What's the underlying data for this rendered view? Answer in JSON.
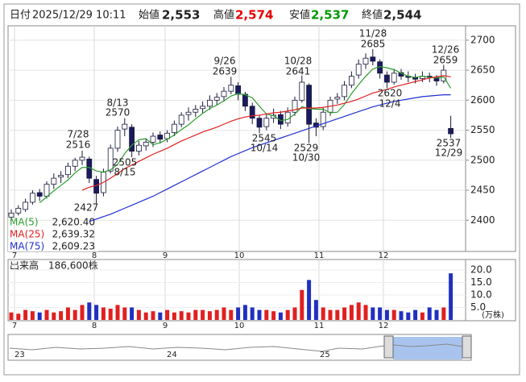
{
  "chart_data": {
    "type": "candlestick",
    "header": [
      {
        "label": "日付",
        "value": "2025/12/29 10:11"
      },
      {
        "label": "始値",
        "value": "2,553"
      },
      {
        "label": "高値",
        "value": "2,574",
        "color": "#e60000"
      },
      {
        "label": "安値",
        "value": "2,537",
        "color": "#009900"
      },
      {
        "label": "終値",
        "value": "2,544"
      }
    ],
    "x_labels": [
      "7",
      "8",
      "9",
      "10",
      "11",
      "12"
    ],
    "ylim": [
      2348,
      2724
    ],
    "yticks": [
      2400,
      2450,
      2500,
      2550,
      2600,
      2650,
      2700
    ],
    "grid": true,
    "up_color": "#ffffff",
    "down_color": "#1a1a5e",
    "candles": [
      [
        2405,
        2418,
        2400,
        2412
      ],
      [
        2412,
        2425,
        2408,
        2420
      ],
      [
        2418,
        2436,
        2414,
        2430
      ],
      [
        2430,
        2450,
        2426,
        2445
      ],
      [
        2446,
        2452,
        2432,
        2440
      ],
      [
        2440,
        2465,
        2436,
        2460
      ],
      [
        2460,
        2478,
        2452,
        2470
      ],
      [
        2472,
        2482,
        2462,
        2475
      ],
      [
        2476,
        2496,
        2470,
        2490
      ],
      [
        2490,
        2504,
        2482,
        2500
      ],
      [
        2500,
        2516,
        2492,
        2505
      ],
      [
        2502,
        2506,
        2462,
        2470
      ],
      [
        2468,
        2474,
        2427,
        2445
      ],
      [
        2446,
        2486,
        2440,
        2480
      ],
      [
        2482,
        2526,
        2478,
        2520
      ],
      [
        2520,
        2556,
        2514,
        2550
      ],
      [
        2552,
        2570,
        2540,
        2560
      ],
      [
        2555,
        2560,
        2505,
        2515
      ],
      [
        2515,
        2532,
        2508,
        2525
      ],
      [
        2524,
        2536,
        2516,
        2530
      ],
      [
        2530,
        2546,
        2522,
        2540
      ],
      [
        2542,
        2548,
        2528,
        2535
      ],
      [
        2536,
        2550,
        2530,
        2545
      ],
      [
        2546,
        2566,
        2540,
        2560
      ],
      [
        2560,
        2580,
        2555,
        2575
      ],
      [
        2576,
        2588,
        2566,
        2580
      ],
      [
        2580,
        2592,
        2572,
        2585
      ],
      [
        2586,
        2598,
        2578,
        2590
      ],
      [
        2590,
        2608,
        2584,
        2600
      ],
      [
        2600,
        2612,
        2592,
        2605
      ],
      [
        2606,
        2622,
        2598,
        2615
      ],
      [
        2615,
        2639,
        2610,
        2625
      ],
      [
        2624,
        2630,
        2600,
        2610
      ],
      [
        2610,
        2614,
        2582,
        2590
      ],
      [
        2590,
        2596,
        2560,
        2570
      ],
      [
        2570,
        2575,
        2545,
        2555
      ],
      [
        2556,
        2578,
        2550,
        2570
      ],
      [
        2570,
        2586,
        2562,
        2575
      ],
      [
        2576,
        2582,
        2552,
        2560
      ],
      [
        2562,
        2588,
        2556,
        2580
      ],
      [
        2580,
        2606,
        2574,
        2600
      ],
      [
        2600,
        2641,
        2596,
        2630
      ],
      [
        2625,
        2628,
        2529,
        2560
      ],
      [
        2562,
        2570,
        2540,
        2555
      ],
      [
        2556,
        2588,
        2550,
        2580
      ],
      [
        2580,
        2606,
        2574,
        2600
      ],
      [
        2602,
        2612,
        2594,
        2605
      ],
      [
        2606,
        2632,
        2600,
        2625
      ],
      [
        2625,
        2648,
        2620,
        2640
      ],
      [
        2642,
        2668,
        2636,
        2660
      ],
      [
        2660,
        2678,
        2652,
        2670
      ],
      [
        2672,
        2685,
        2658,
        2665
      ],
      [
        2664,
        2668,
        2636,
        2645
      ],
      [
        2642,
        2648,
        2620,
        2630
      ],
      [
        2630,
        2652,
        2626,
        2645
      ],
      [
        2646,
        2652,
        2634,
        2640
      ],
      [
        2640,
        2648,
        2630,
        2638
      ],
      [
        2638,
        2644,
        2628,
        2635
      ],
      [
        2636,
        2648,
        2630,
        2640
      ],
      [
        2640,
        2646,
        2630,
        2638
      ],
      [
        2638,
        2642,
        2624,
        2632
      ],
      [
        2632,
        2659,
        2628,
        2650
      ],
      [
        2553,
        2574,
        2537,
        2544
      ]
    ],
    "series": [
      {
        "name": "MA(5)",
        "legend_value": "2,620.40",
        "color": "#2e9e2e",
        "values": [
          null,
          null,
          null,
          null,
          2429,
          2439,
          2449,
          2458,
          2467,
          2479,
          2488,
          2488,
          2482,
          2480,
          2484,
          2493,
          2511,
          2525,
          2534,
          2536,
          2526,
          2529,
          2535,
          2542,
          2551,
          2559,
          2569,
          2578,
          2586,
          2592,
          2599,
          2607,
          2611,
          2609,
          2604,
          2590,
          2577,
          2574,
          2566,
          2568,
          2577,
          2589,
          2586,
          2585,
          2585,
          2579,
          2580,
          2593,
          2611,
          2626,
          2640,
          2652,
          2656,
          2654,
          2651,
          2645,
          2640,
          2638,
          2640,
          2638,
          2637,
          2639,
          2620
        ]
      },
      {
        "name": "MA(25)",
        "legend_value": "2,639.32",
        "color": "#e02020",
        "values": [
          null,
          null,
          null,
          null,
          null,
          null,
          null,
          null,
          null,
          null,
          2450,
          2455,
          2458,
          2463,
          2470,
          2478,
          2486,
          2492,
          2498,
          2504,
          2510,
          2515,
          2520,
          2526,
          2532,
          2537,
          2542,
          2547,
          2551,
          2555,
          2560,
          2565,
          2569,
          2572,
          2574,
          2575,
          2577,
          2579,
          2580,
          2582,
          2584,
          2587,
          2587,
          2587,
          2588,
          2590,
          2592,
          2595,
          2598,
          2602,
          2607,
          2612,
          2615,
          2618,
          2622,
          2625,
          2628,
          2631,
          2634,
          2637,
          2639,
          2641,
          2639
        ]
      },
      {
        "name": "MA(75)",
        "legend_value": "2,609.23",
        "color": "#2030d0",
        "values": [
          null,
          null,
          null,
          null,
          null,
          null,
          null,
          null,
          null,
          null,
          null,
          2398,
          2402,
          2406,
          2410,
          2415,
          2420,
          2425,
          2430,
          2435,
          2440,
          2446,
          2452,
          2458,
          2464,
          2470,
          2476,
          2482,
          2488,
          2494,
          2500,
          2506,
          2511,
          2516,
          2521,
          2525,
          2529,
          2533,
          2537,
          2541,
          2545,
          2549,
          2553,
          2557,
          2561,
          2565,
          2569,
          2573,
          2577,
          2581,
          2585,
          2589,
          2592,
          2595,
          2598,
          2600,
          2602,
          2604,
          2606,
          2607,
          2608,
          2609,
          2609
        ]
      }
    ],
    "annotations": [
      {
        "date": "7/28",
        "price": 2516
      },
      {
        "price": 2427
      },
      {
        "date": "8/13",
        "price": 2570
      },
      {
        "date": "8/15",
        "price": 2505
      },
      {
        "date": "9/26",
        "price": 2639
      },
      {
        "date": "10/14",
        "price": 2545
      },
      {
        "date": "10/28",
        "price": 2641
      },
      {
        "date": "10/30",
        "price": 2529
      },
      {
        "date": "11/28",
        "price": 2685
      },
      {
        "date": "12/4",
        "price": 2620
      },
      {
        "date": "12/26",
        "price": 2659
      },
      {
        "date": "12/29",
        "price": 2537
      }
    ],
    "volume": {
      "title": "出来高　186,600株",
      "unit": "(万株)",
      "up_color": "#e02020",
      "down_color": "#2030c0",
      "ylim": [
        0,
        22
      ],
      "yticks": [
        {
          "value": 5,
          "label": "5.0"
        },
        {
          "value": 10,
          "label": "10.0"
        },
        {
          "value": 15,
          "label": "15.0"
        },
        {
          "value": 20,
          "label": "20.0"
        }
      ],
      "values": [
        3,
        2.5,
        4,
        3.5,
        3,
        4,
        3,
        3.5,
        5,
        4,
        6,
        7,
        6,
        5,
        4.5,
        6,
        5,
        5,
        4,
        3,
        3.5,
        3,
        4,
        3,
        3.5,
        3,
        4,
        4,
        3.5,
        4,
        5,
        4,
        5,
        6,
        5,
        4,
        4,
        3.5,
        3,
        4,
        5,
        12,
        16,
        8,
        5,
        4,
        4,
        5,
        6,
        7,
        6,
        5,
        5,
        4,
        4,
        3.5,
        3,
        4,
        3,
        5,
        4,
        5,
        18.66
      ]
    },
    "navigator_labels": [
      "23",
      "24",
      "25"
    ]
  }
}
